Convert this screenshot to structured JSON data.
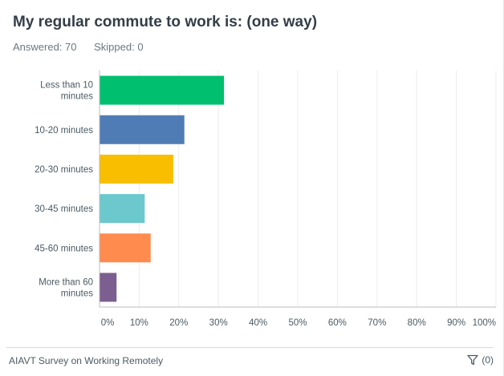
{
  "question": {
    "title": "My regular commute to work is: (one way)",
    "answered_label": "Answered: 70",
    "skipped_label": "Skipped: 0"
  },
  "footer": {
    "survey_name": "AIAVT Survey on Working Remotely",
    "filter_icon": "filter-icon",
    "filter_count": "(0)"
  },
  "chart_data": {
    "type": "bar",
    "orientation": "horizontal",
    "categories": [
      [
        "Less than 10",
        "minutes"
      ],
      [
        "10-20 minutes"
      ],
      [
        "20-30 minutes"
      ],
      [
        "30-45 minutes"
      ],
      [
        "45-60 minutes"
      ],
      [
        "More than 60",
        "minutes"
      ]
    ],
    "values": [
      31.4,
      21.4,
      18.6,
      11.4,
      12.9,
      4.3
    ],
    "colors": [
      "#00bf6f",
      "#507cb6",
      "#f9be00",
      "#6bc8cd",
      "#ff8b4f",
      "#7d5e90"
    ],
    "xlim": [
      0,
      100
    ],
    "xticks": [
      "0%",
      "10%",
      "20%",
      "30%",
      "40%",
      "50%",
      "60%",
      "70%",
      "80%",
      "90%",
      "100%"
    ],
    "grid": true
  }
}
